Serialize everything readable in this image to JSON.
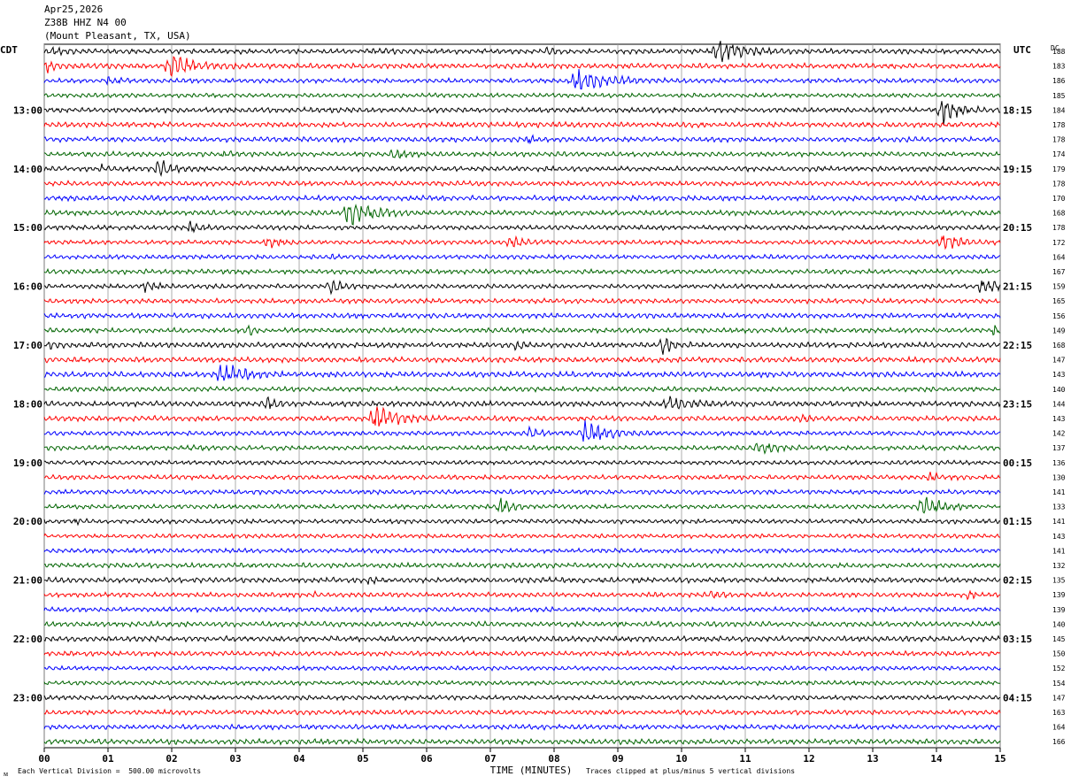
{
  "header": {
    "date": "Apr25,2026",
    "station": "Z38B HHZ N4 00",
    "location": "(Mount Pleasant, TX, USA)"
  },
  "left_zone_label": "CDT",
  "right_zone_label": "UTC",
  "dc_header": "DC",
  "footer": {
    "scale_text": "Each Vertical Division =  500.00 microvolts",
    "clip_text": "Traces clipped at plus/minus 5 vertical divisions",
    "corner_mark": "ᴍ"
  },
  "chart_data": {
    "type": "helicorder",
    "xlabel": "TIME (MINUTES)",
    "x_ticks": [
      "00",
      "01",
      "02",
      "03",
      "04",
      "05",
      "06",
      "07",
      "08",
      "09",
      "10",
      "11",
      "12",
      "13",
      "14",
      "15"
    ],
    "xlim": [
      0,
      15
    ],
    "trace_count": 48,
    "minutes_per_trace": 15,
    "trace_colors": [
      "#000000",
      "#ff0000",
      "#0000ff",
      "#006400"
    ],
    "left_hour_labels": [
      {
        "trace": 4,
        "label": "13:00"
      },
      {
        "trace": 8,
        "label": "14:00"
      },
      {
        "trace": 12,
        "label": "15:00"
      },
      {
        "trace": 16,
        "label": "16:00"
      },
      {
        "trace": 20,
        "label": "17:00"
      },
      {
        "trace": 24,
        "label": "18:00"
      },
      {
        "trace": 28,
        "label": "19:00"
      },
      {
        "trace": 32,
        "label": "20:00"
      },
      {
        "trace": 36,
        "label": "21:00"
      },
      {
        "trace": 40,
        "label": "22:00"
      },
      {
        "trace": 44,
        "label": "23:00"
      }
    ],
    "right_hour_labels": [
      {
        "trace": 4,
        "label": "18:15"
      },
      {
        "trace": 8,
        "label": "19:15"
      },
      {
        "trace": 12,
        "label": "20:15"
      },
      {
        "trace": 16,
        "label": "21:15"
      },
      {
        "trace": 20,
        "label": "22:15"
      },
      {
        "trace": 24,
        "label": "23:15"
      },
      {
        "trace": 28,
        "label": "00:15"
      },
      {
        "trace": 32,
        "label": "01:15"
      },
      {
        "trace": 36,
        "label": "02:15"
      },
      {
        "trace": 40,
        "label": "03:15"
      },
      {
        "trace": 44,
        "label": "04:15"
      }
    ],
    "dc_offsets": [
      "188",
      "183",
      "186",
      "185",
      "184",
      "178",
      "178",
      "174",
      "179",
      "178",
      "170",
      "168",
      "178",
      "172",
      "164",
      "167",
      "159",
      "165",
      "156",
      "149",
      "168",
      "147",
      "143",
      "140",
      "144",
      "143",
      "142",
      "137",
      "136",
      "130",
      "141",
      "133",
      "141",
      "143",
      "141",
      "132",
      "135",
      "139",
      "139",
      "140",
      "145",
      "150",
      "152",
      "154",
      "147",
      "163",
      "164",
      "166"
    ],
    "events": [
      {
        "trace": 0,
        "minute": 0.15,
        "amp": 0.4,
        "dur": 0.2
      },
      {
        "trace": 0,
        "minute": 5.2,
        "amp": 0.5,
        "dur": 0.15
      },
      {
        "trace": 0,
        "minute": 7.9,
        "amp": 0.4,
        "dur": 0.2
      },
      {
        "trace": 0,
        "minute": 10.6,
        "amp": 1.6,
        "dur": 0.4
      },
      {
        "trace": 1,
        "minute": 0.05,
        "amp": 0.8,
        "dur": 0.1
      },
      {
        "trace": 1,
        "minute": 2.0,
        "amp": 1.4,
        "dur": 0.4
      },
      {
        "trace": 2,
        "minute": 1.0,
        "amp": 0.4,
        "dur": 0.2
      },
      {
        "trace": 2,
        "minute": 8.4,
        "amp": 1.5,
        "dur": 0.5
      },
      {
        "trace": 4,
        "minute": 14.1,
        "amp": 1.6,
        "dur": 0.3
      },
      {
        "trace": 6,
        "minute": 7.6,
        "amp": 0.4,
        "dur": 0.1
      },
      {
        "trace": 7,
        "minute": 2.8,
        "amp": 0.5,
        "dur": 0.1
      },
      {
        "trace": 7,
        "minute": 5.5,
        "amp": 0.5,
        "dur": 0.3
      },
      {
        "trace": 8,
        "minute": 0.9,
        "amp": 0.5,
        "dur": 0.1
      },
      {
        "trace": 8,
        "minute": 1.8,
        "amp": 1.3,
        "dur": 0.2
      },
      {
        "trace": 11,
        "minute": 4.8,
        "amp": 1.6,
        "dur": 0.4
      },
      {
        "trace": 12,
        "minute": 2.3,
        "amp": 0.6,
        "dur": 0.2
      },
      {
        "trace": 13,
        "minute": 3.5,
        "amp": 0.7,
        "dur": 0.2
      },
      {
        "trace": 13,
        "minute": 7.3,
        "amp": 0.9,
        "dur": 0.2
      },
      {
        "trace": 13,
        "minute": 14.1,
        "amp": 1.2,
        "dur": 0.3
      },
      {
        "trace": 14,
        "minute": 4.5,
        "amp": 0.4,
        "dur": 0.1
      },
      {
        "trace": 16,
        "minute": 1.6,
        "amp": 0.6,
        "dur": 0.2
      },
      {
        "trace": 16,
        "minute": 4.5,
        "amp": 0.9,
        "dur": 0.2
      },
      {
        "trace": 16,
        "minute": 14.7,
        "amp": 1.0,
        "dur": 0.3
      },
      {
        "trace": 19,
        "minute": 3.2,
        "amp": 0.6,
        "dur": 0.1
      },
      {
        "trace": 19,
        "minute": 14.9,
        "amp": 0.8,
        "dur": 0.1
      },
      {
        "trace": 20,
        "minute": 0.1,
        "amp": 0.4,
        "dur": 0.1
      },
      {
        "trace": 20,
        "minute": 7.4,
        "amp": 0.7,
        "dur": 0.1
      },
      {
        "trace": 20,
        "minute": 9.7,
        "amp": 1.2,
        "dur": 0.2
      },
      {
        "trace": 22,
        "minute": 2.8,
        "amp": 1.5,
        "dur": 0.4
      },
      {
        "trace": 24,
        "minute": 3.5,
        "amp": 0.7,
        "dur": 0.2
      },
      {
        "trace": 24,
        "minute": 9.8,
        "amp": 1.0,
        "dur": 0.3
      },
      {
        "trace": 25,
        "minute": 5.2,
        "amp": 1.5,
        "dur": 0.4
      },
      {
        "trace": 25,
        "minute": 11.9,
        "amp": 0.5,
        "dur": 0.2
      },
      {
        "trace": 26,
        "minute": 7.6,
        "amp": 0.6,
        "dur": 0.2
      },
      {
        "trace": 26,
        "minute": 8.5,
        "amp": 1.3,
        "dur": 0.4
      },
      {
        "trace": 27,
        "minute": 2.3,
        "amp": 0.6,
        "dur": 0.1
      },
      {
        "trace": 27,
        "minute": 11.2,
        "amp": 0.7,
        "dur": 0.3
      },
      {
        "trace": 29,
        "minute": 13.9,
        "amp": 0.4,
        "dur": 0.2
      },
      {
        "trace": 31,
        "minute": 7.15,
        "amp": 1.3,
        "dur": 0.2
      },
      {
        "trace": 31,
        "minute": 13.8,
        "amp": 1.4,
        "dur": 0.3
      },
      {
        "trace": 32,
        "minute": 0.5,
        "amp": 0.3,
        "dur": 0.1
      },
      {
        "trace": 32,
        "minute": 12.8,
        "amp": 0.5,
        "dur": 0.1
      },
      {
        "trace": 36,
        "minute": 5.1,
        "amp": 0.6,
        "dur": 0.1
      },
      {
        "trace": 37,
        "minute": 4.2,
        "amp": 0.4,
        "dur": 0.05
      },
      {
        "trace": 37,
        "minute": 10.5,
        "amp": 0.5,
        "dur": 0.2
      },
      {
        "trace": 37,
        "minute": 14.5,
        "amp": 0.6,
        "dur": 0.1
      }
    ]
  }
}
